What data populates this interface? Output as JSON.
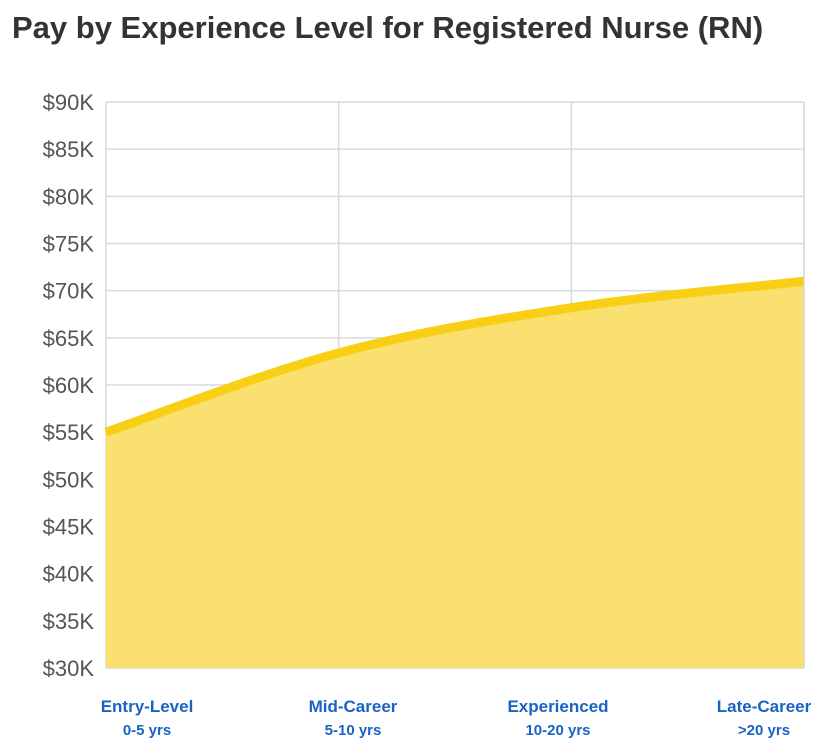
{
  "title": "Pay by Experience Level for Registered Nurse (RN)",
  "colors": {
    "line": "#f8cf14",
    "fill": "#f9e06f",
    "grid": "#d9d9d9",
    "tick_text": "#555555",
    "category_text": "#1a63c5"
  },
  "chart_data": {
    "type": "area",
    "title": "Pay by Experience Level for Registered Nurse (RN)",
    "xlabel": "",
    "ylabel": "",
    "ylim": [
      30000,
      90000
    ],
    "y_ticks": [
      30000,
      35000,
      40000,
      45000,
      50000,
      55000,
      60000,
      65000,
      70000,
      75000,
      80000,
      85000,
      90000
    ],
    "y_tick_labels": [
      "$30K",
      "$35K",
      "$40K",
      "$45K",
      "$50K",
      "$55K",
      "$60K",
      "$65K",
      "$70K",
      "$75K",
      "$80K",
      "$85K",
      "$90K"
    ],
    "categories": [
      {
        "name": "Entry-Level",
        "range": "0-5 yrs"
      },
      {
        "name": "Mid-Career",
        "range": "5-10 yrs"
      },
      {
        "name": "Experienced",
        "range": "10-20 yrs"
      },
      {
        "name": "Late-Career",
        "range": ">20 yrs"
      }
    ],
    "values": [
      55000,
      63400,
      68200,
      71000
    ],
    "grid": true,
    "legend": "none"
  }
}
